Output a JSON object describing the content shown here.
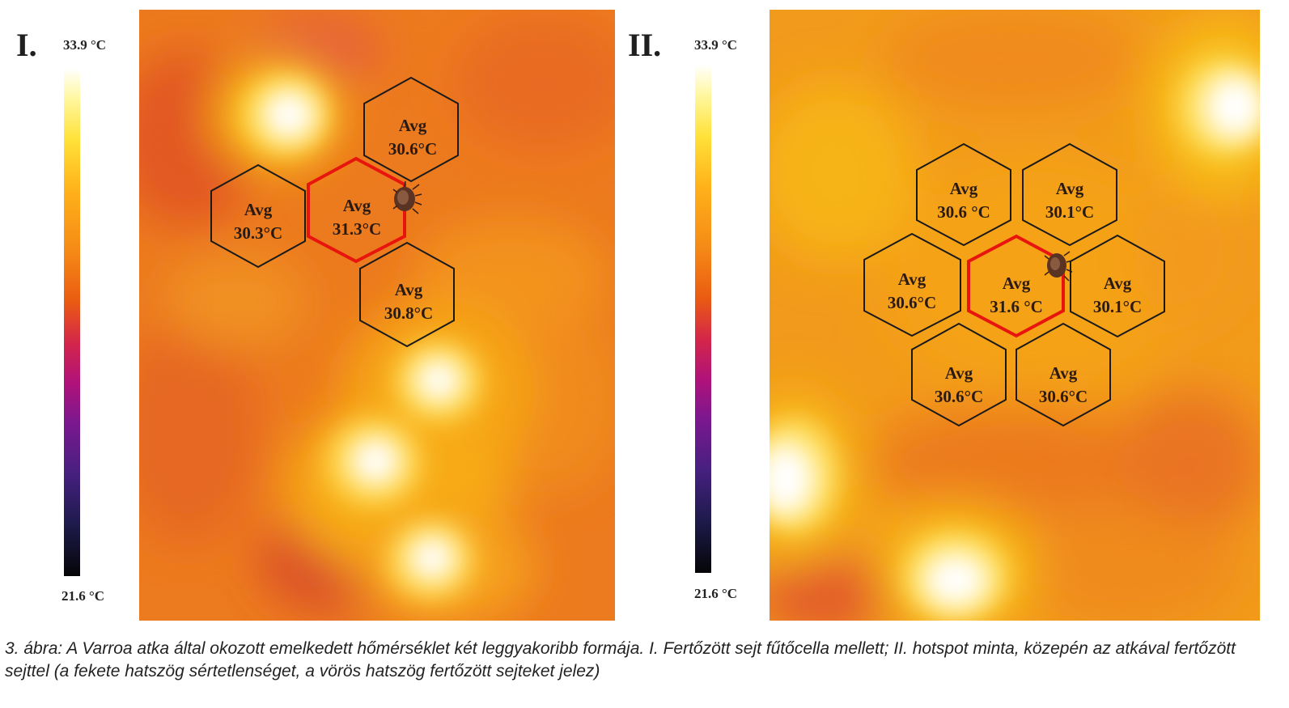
{
  "panels": [
    {
      "label": "I.",
      "scale_max": "33.9 °C",
      "scale_min": "21.6 °C",
      "cells": [
        {
          "line1": "Avg",
          "line2": "30.6°C",
          "infected": false
        },
        {
          "line1": "Avg",
          "line2": "30.3°C",
          "infected": false
        },
        {
          "line1": "Avg",
          "line2": "31.3°C",
          "infected": true
        },
        {
          "line1": "Avg",
          "line2": "30.8°C",
          "infected": false
        }
      ]
    },
    {
      "label": "II.",
      "scale_max": "33.9 °C",
      "scale_min": "21.6 °C",
      "cells": [
        {
          "line1": "Avg",
          "line2": "30.6 °C",
          "infected": false
        },
        {
          "line1": "Avg",
          "line2": "30.1°C",
          "infected": false
        },
        {
          "line1": "Avg",
          "line2": "30.6°C",
          "infected": false
        },
        {
          "line1": "Avg",
          "line2": "31.6 °C",
          "infected": true
        },
        {
          "line1": "Avg",
          "line2": "30.1°C",
          "infected": false
        },
        {
          "line1": "Avg",
          "line2": "30.6°C",
          "infected": false
        },
        {
          "line1": "Avg",
          "line2": "30.6°C",
          "infected": false
        }
      ]
    }
  ],
  "caption": "3. ábra: A Varroa atka által okozott emelkedett hőmérséklet két leggyakoribb formája. I. Fertőzött sejt fűtőcella mellett; II. hotspot minta, közepén az atkával fertőzött sejttel (a fekete hatszög sértetlenséget, a vörös hatszög fertőzött sejteket jelez)",
  "colors": {
    "intact_cell": "#1a1a1a",
    "infected_cell": "#e8150f",
    "background_hot": "#ffffff",
    "background_base": "#ee7a1c"
  }
}
